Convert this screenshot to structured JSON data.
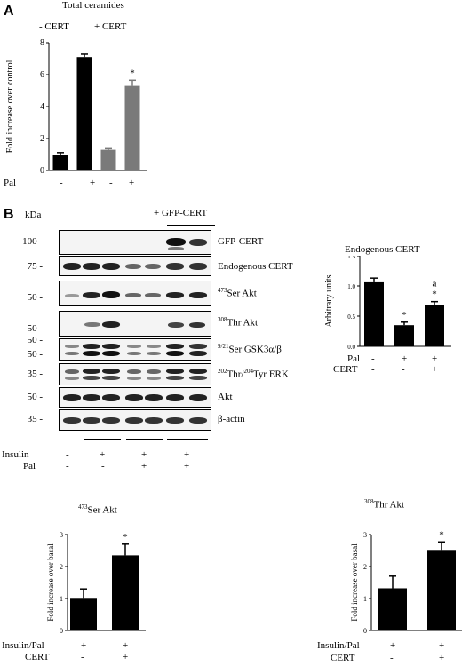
{
  "panel_a": {
    "letter": "A",
    "title": "Total ceramides",
    "group_minus": "- CERT",
    "group_plus": "+ CERT",
    "pal_label": "Pal",
    "pal_signs": [
      "-",
      "+",
      "-",
      "+"
    ]
  },
  "panel_b": {
    "letter": "B",
    "kda": "kDa",
    "gfp_header": "+ GFP-CERT",
    "blots": [
      {
        "mw": "100 -",
        "label": "GFP-CERT"
      },
      {
        "mw": "75 -",
        "label": "Endogenous CERT"
      },
      {
        "mw": "50 -",
        "label_sup": "473",
        "label": "Ser Akt"
      },
      {
        "mw": "50 -",
        "label_sup": "308",
        "label": "Thr Akt"
      },
      {
        "mw": "50 -",
        "label_sup": "9/21",
        "label": "Ser GSK3α/β"
      },
      {
        "mw": "35 -",
        "label_sup": "202",
        "label_mid": "Thr/",
        "label_sup2": "204",
        "label": "Tyr ERK"
      },
      {
        "mw": "50 -",
        "label": "Akt"
      },
      {
        "mw": "35 -",
        "label": "β-actin"
      }
    ],
    "extra_mw": "50 -",
    "insulin_label": "Insulin",
    "insulin_signs": [
      "-",
      "+",
      "+",
      "+"
    ],
    "pal_label": "Pal",
    "pal_signs": [
      "-",
      "-",
      "+",
      "+"
    ]
  },
  "chart_data": [
    {
      "type": "bar",
      "title": "Total ceramides",
      "ylabel": "Fold increase over control",
      "ylim": [
        0,
        8
      ],
      "yticks": [
        "0",
        "2",
        "4",
        "6",
        "8"
      ],
      "categories": [
        "-",
        "+",
        "-",
        "+"
      ],
      "values": [
        1.0,
        7.1,
        1.3,
        5.3
      ],
      "errors": [
        0.12,
        0.18,
        0.07,
        0.35
      ],
      "colors": [
        "#000000",
        "#000000",
        "#7a7a7a",
        "#7a7a7a"
      ],
      "annotations": [
        "",
        "",
        "",
        "*"
      ]
    },
    {
      "type": "bar",
      "title": "Endogenous CERT",
      "ylabel": "Arbitrary units",
      "ylim": [
        0,
        1.5
      ],
      "yticks": [
        "0.0",
        "0.5",
        "1.0",
        "1.5"
      ],
      "rows": [
        {
          "label": "Pal",
          "signs": [
            "-",
            "+",
            "+"
          ]
        },
        {
          "label": "CERT",
          "signs": [
            "-",
            "-",
            "+"
          ]
        }
      ],
      "values": [
        1.06,
        0.35,
        0.68
      ],
      "errors": [
        0.07,
        0.05,
        0.06
      ],
      "annotations": [
        "",
        "*",
        "a\n*"
      ]
    },
    {
      "type": "bar",
      "title_sup": "473",
      "title": "Ser Akt",
      "ylabel": "Fold increase over basal",
      "ylim": [
        0,
        3
      ],
      "yticks": [
        "0",
        "1",
        "2",
        "3"
      ],
      "rows": [
        {
          "label": "Insulin/Pal",
          "signs": [
            "+",
            "+"
          ]
        },
        {
          "label": "CERT",
          "signs": [
            "-",
            "+"
          ]
        }
      ],
      "values": [
        1.02,
        2.35
      ],
      "errors": [
        0.28,
        0.35
      ],
      "annotations": [
        "",
        "*"
      ]
    },
    {
      "type": "bar",
      "title_sup": "308",
      "title": "Thr Akt",
      "ylabel": "Fold increase over basal",
      "ylim": [
        0,
        3
      ],
      "yticks": [
        "0",
        "1",
        "2",
        "3"
      ],
      "rows": [
        {
          "label": "Insulin/Pal",
          "signs": [
            "+",
            "+"
          ]
        },
        {
          "label": "CERT",
          "signs": [
            "-",
            "+"
          ]
        }
      ],
      "values": [
        1.32,
        2.52
      ],
      "errors": [
        0.38,
        0.25
      ],
      "annotations": [
        "",
        "*"
      ]
    }
  ]
}
